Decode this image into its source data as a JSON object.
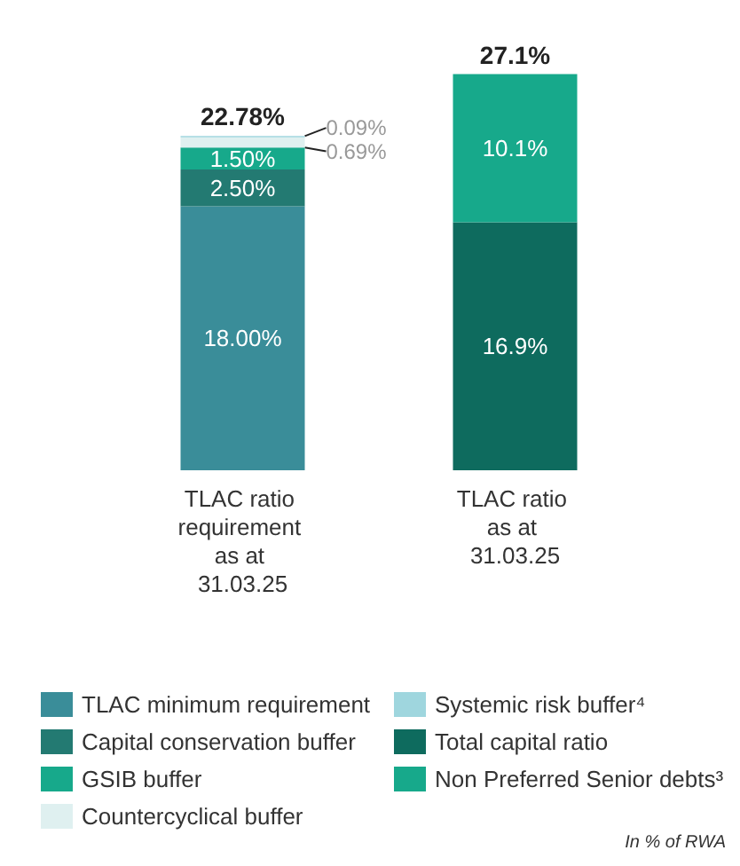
{
  "chart_data": {
    "type": "bar",
    "stacked": true,
    "categories": [
      "TLAC ratio requirement as at 31.03.25",
      "TLAC ratio as at 31.03.25"
    ],
    "series": [
      {
        "name": "TLAC minimum requirement",
        "color": "#3a8d99",
        "values": [
          18.0,
          null
        ],
        "value_labels": [
          "18.00%",
          null
        ]
      },
      {
        "name": "Capital conservation buffer",
        "color": "#237a72",
        "values": [
          2.5,
          null
        ],
        "value_labels": [
          "2.50%",
          null
        ]
      },
      {
        "name": "GSIB buffer",
        "color": "#17a98b",
        "values": [
          1.5,
          null
        ],
        "value_labels": [
          "1.50%",
          null
        ]
      },
      {
        "name": "Countercyclical buffer",
        "color": "#dff0f0",
        "values": [
          0.69,
          null
        ],
        "value_labels": [
          "0.69%",
          null
        ]
      },
      {
        "name": "Systemic risk buffer⁴",
        "color": "#9fd6de",
        "values": [
          0.09,
          null
        ],
        "value_labels": [
          "0.09%",
          null
        ]
      },
      {
        "name": "Total capital ratio",
        "color": "#0e6b5e",
        "values": [
          null,
          16.9
        ],
        "value_labels": [
          null,
          "16.9%"
        ]
      },
      {
        "name": "Non Preferred Senior debts³",
        "color": "#17a98b",
        "values": [
          null,
          10.1
        ],
        "value_labels": [
          null,
          "10.1%"
        ]
      }
    ],
    "totals": [
      "22.78%",
      "27.1%"
    ],
    "legend": "bottom",
    "annotations": [
      "In % of RWA"
    ]
  }
}
